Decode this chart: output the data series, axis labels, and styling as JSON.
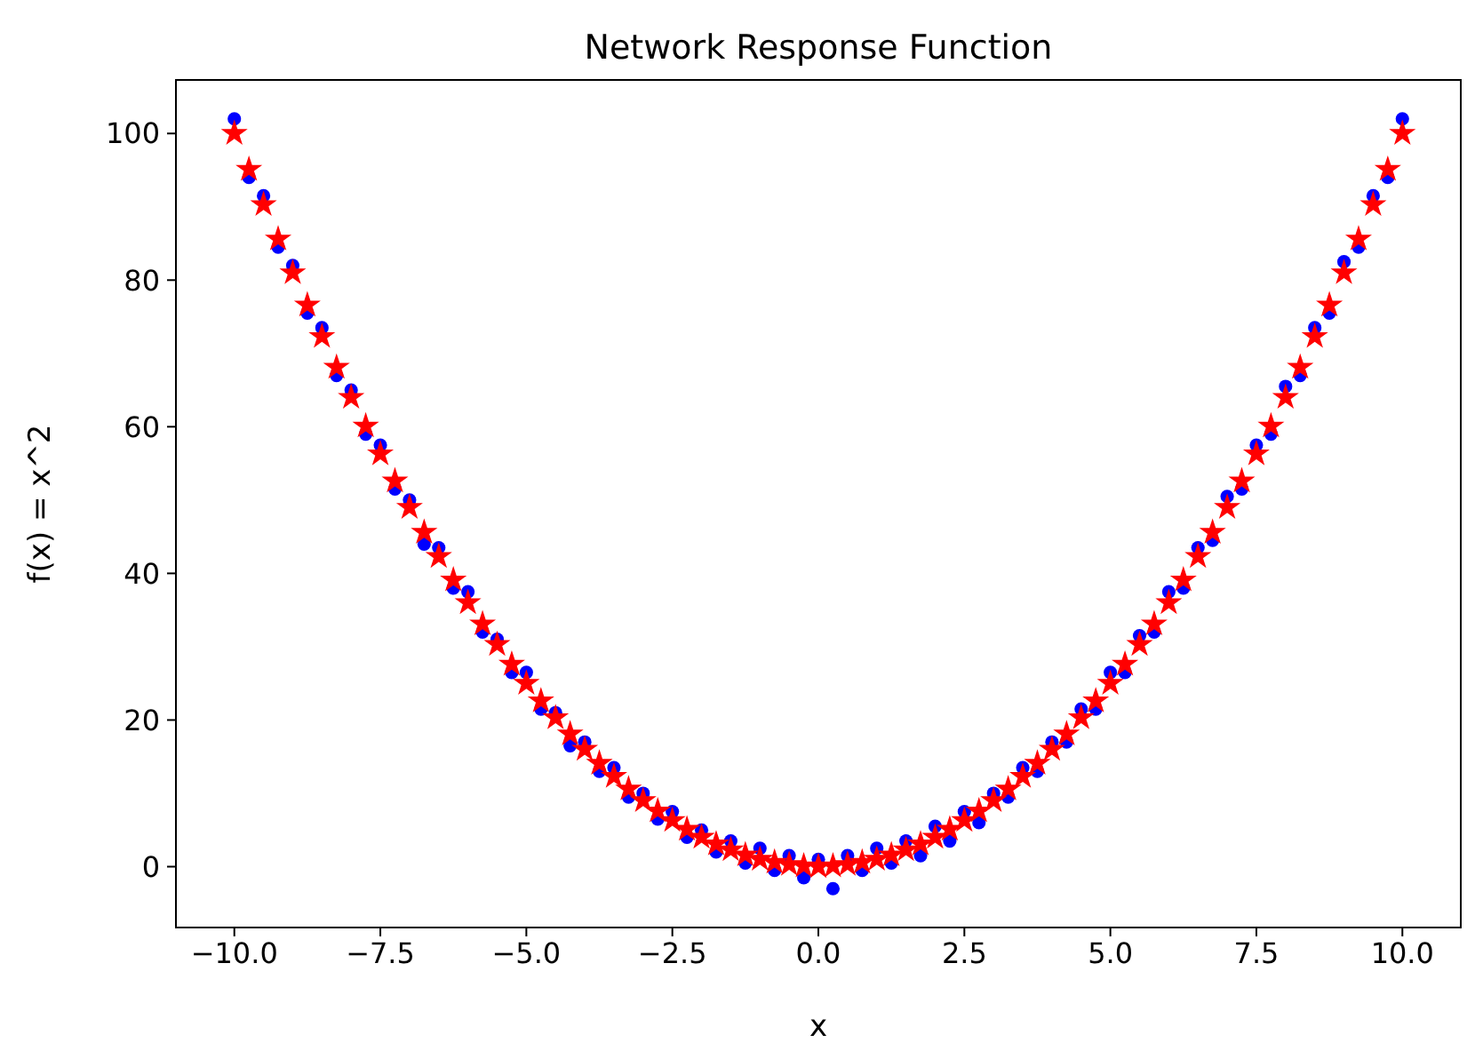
{
  "chart_data": {
    "type": "scatter",
    "title": "Network Response Function",
    "xlabel": "x",
    "ylabel": "f(x) = x^2",
    "xlim": [
      -11,
      11
    ],
    "ylim": [
      -8.3,
      107.3
    ],
    "xticks": [
      {
        "value": -10,
        "label": "−10.0"
      },
      {
        "value": -7.5,
        "label": "−7.5"
      },
      {
        "value": -5,
        "label": "−5.0"
      },
      {
        "value": -2.5,
        "label": "−2.5"
      },
      {
        "value": 0,
        "label": "0.0"
      },
      {
        "value": 2.5,
        "label": "2.5"
      },
      {
        "value": 5,
        "label": "5.0"
      },
      {
        "value": 7.5,
        "label": "7.5"
      },
      {
        "value": 10,
        "label": "10.0"
      }
    ],
    "yticks": [
      0,
      20,
      40,
      60,
      80,
      100
    ],
    "grid": false,
    "series": [
      {
        "color": "#0000ff",
        "marker": "circle",
        "x": [
          -10,
          -9.75,
          -9.5,
          -9.25,
          -9,
          -8.75,
          -8.5,
          -8.25,
          -8,
          -7.75,
          -7.5,
          -7.25,
          -7,
          -6.75,
          -6.5,
          -6.25,
          -6,
          -5.75,
          -5.5,
          -5.25,
          -5,
          -4.75,
          -4.5,
          -4.25,
          -4,
          -3.75,
          -3.5,
          -3.25,
          -3,
          -2.75,
          -2.5,
          -2.25,
          -2,
          -1.75,
          -1.5,
          -1.25,
          -1,
          -0.75,
          -0.5,
          -0.25,
          0,
          0.25,
          0.5,
          0.75,
          1,
          1.25,
          1.5,
          1.75,
          2,
          2.25,
          2.5,
          2.75,
          3,
          3.25,
          3.5,
          3.75,
          4,
          4.25,
          4.5,
          4.75,
          5,
          5.25,
          5.5,
          5.75,
          6,
          6.25,
          6.5,
          6.75,
          7,
          7.25,
          7.5,
          7.75,
          8,
          8.25,
          8.5,
          8.75,
          9,
          9.25,
          9.5,
          9.75,
          10
        ],
        "values": [
          102,
          94,
          91.5,
          84.5,
          82,
          75.5,
          73.5,
          67,
          65,
          59,
          57.5,
          51.5,
          50,
          44,
          43.5,
          38,
          37.5,
          32,
          31,
          26.5,
          26.5,
          21.5,
          21,
          16.5,
          17,
          13,
          13.5,
          9.5,
          10,
          6.5,
          7.5,
          4,
          5,
          2,
          3.5,
          0.5,
          2.5,
          -0.5,
          1.5,
          -1.5,
          1,
          -3,
          1.5,
          -0.5,
          2.5,
          0.5,
          3.5,
          1.5,
          5.5,
          3.5,
          7.5,
          6,
          10,
          9.5,
          13.5,
          13,
          17,
          17,
          21.5,
          21.5,
          26.5,
          26.5,
          31.5,
          32,
          37.5,
          38,
          43.5,
          44.5,
          50.5,
          51.5,
          57.5,
          59,
          65.5,
          67,
          73.5,
          75.5,
          82.5,
          84.5,
          91.5,
          94,
          102
        ]
      },
      {
        "color": "#ff0000",
        "marker": "star",
        "x": [
          -10,
          -9.75,
          -9.5,
          -9.25,
          -9,
          -8.75,
          -8.5,
          -8.25,
          -8,
          -7.75,
          -7.5,
          -7.25,
          -7,
          -6.75,
          -6.5,
          -6.25,
          -6,
          -5.75,
          -5.5,
          -5.25,
          -5,
          -4.75,
          -4.5,
          -4.25,
          -4,
          -3.75,
          -3.5,
          -3.25,
          -3,
          -2.75,
          -2.5,
          -2.25,
          -2,
          -1.75,
          -1.5,
          -1.25,
          -1,
          -0.75,
          -0.5,
          -0.25,
          0,
          0.25,
          0.5,
          0.75,
          1,
          1.25,
          1.5,
          1.75,
          2,
          2.25,
          2.5,
          2.75,
          3,
          3.25,
          3.5,
          3.75,
          4,
          4.25,
          4.5,
          4.75,
          5,
          5.25,
          5.5,
          5.75,
          6,
          6.25,
          6.5,
          6.75,
          7,
          7.25,
          7.5,
          7.75,
          8,
          8.25,
          8.5,
          8.75,
          9,
          9.25,
          9.5,
          9.75,
          10
        ],
        "values": [
          100,
          95.1,
          90.3,
          85.6,
          81,
          76.6,
          72.3,
          68.1,
          64,
          60.1,
          56.3,
          52.6,
          49,
          45.6,
          42.3,
          39.1,
          36,
          33.1,
          30.3,
          27.6,
          25,
          22.6,
          20.3,
          18.1,
          16,
          14.1,
          12.3,
          10.6,
          9,
          7.6,
          6.3,
          5.1,
          4,
          3.1,
          2.3,
          1.6,
          1,
          0.6,
          0.3,
          0.1,
          0,
          0.1,
          0.3,
          0.6,
          1,
          1.6,
          2.3,
          3.1,
          4,
          5.1,
          6.3,
          7.6,
          9,
          10.6,
          12.3,
          14.1,
          16,
          18.1,
          20.3,
          22.6,
          25,
          27.6,
          30.3,
          33.1,
          36,
          39.1,
          42.3,
          45.6,
          49,
          52.6,
          56.3,
          60.1,
          64,
          68.1,
          72.3,
          76.6,
          81,
          85.6,
          90.3,
          95.1,
          100
        ]
      }
    ]
  }
}
